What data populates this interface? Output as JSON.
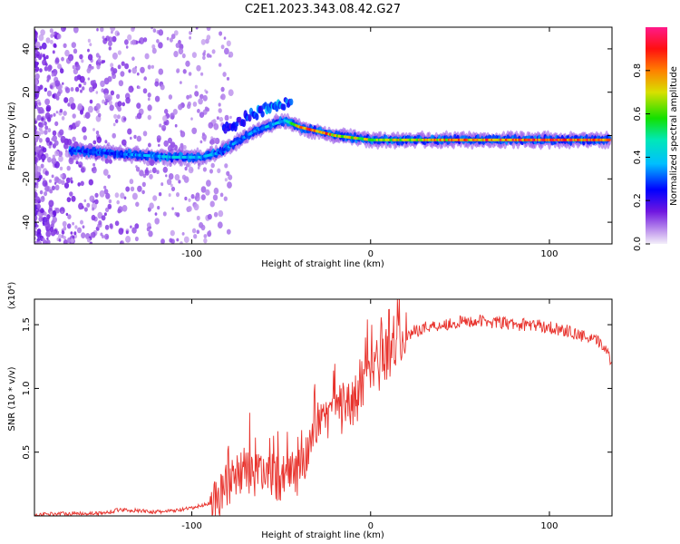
{
  "title": "C2E1.2023.343.08.42.G27",
  "chart_data": [
    {
      "type": "heatmap",
      "xlabel": "Height of straight line (km)",
      "ylabel": "Frequency (Hz)",
      "xlim": [
        -188,
        135
      ],
      "ylim": [
        -50,
        50
      ],
      "xticks": [
        -100,
        0,
        100
      ],
      "yticks": [
        -40,
        -20,
        0,
        20,
        40
      ],
      "colorbar": {
        "label": "Normalized spectral amplitude",
        "range": [
          0,
          1
        ],
        "ticks": [
          "0.0",
          "0.2",
          "0.4",
          "0.6",
          "0.8"
        ]
      },
      "ridge": {
        "x": [
          -165,
          -150,
          -130,
          -110,
          -95,
          -85,
          -75,
          -65,
          -55,
          -48,
          -40,
          -30,
          -20,
          -10,
          0,
          20,
          40,
          60,
          80,
          100,
          120,
          135
        ],
        "freq": [
          -7,
          -8,
          -9,
          -10,
          -10,
          -8,
          -3,
          2,
          5,
          7,
          4,
          2,
          0,
          -1,
          -2,
          -2,
          -2,
          -2,
          -2,
          -2,
          -2,
          -2
        ],
        "amplitude": [
          0.3,
          0.3,
          0.35,
          0.4,
          0.4,
          0.35,
          0.35,
          0.35,
          0.4,
          0.4,
          0.8,
          0.9,
          0.8,
          0.7,
          0.7,
          0.75,
          0.8,
          0.85,
          0.9,
          0.9,
          0.9,
          0.9
        ]
      },
      "branch": {
        "x": [
          -80,
          -70,
          -60,
          -50,
          -45
        ],
        "freq": [
          4,
          8,
          12,
          14,
          15
        ],
        "amplitude": [
          0.2,
          0.25,
          0.3,
          0.3,
          0.25
        ]
      }
    },
    {
      "type": "line",
      "xlabel": "Height of straight line (km)",
      "ylabel": "SNR (10 * v/v)",
      "y_multiplier": "(x10⁴)",
      "xlim": [
        -188,
        135
      ],
      "ylim": [
        0,
        1.7
      ],
      "xticks": [
        -100,
        0,
        100
      ],
      "yticks": [
        0.5,
        1.0,
        1.5
      ],
      "color": "#e8332d",
      "series": [
        {
          "x": [
            -188,
            -170,
            -150,
            -140,
            -130,
            -120,
            -110,
            -100,
            -95,
            -90,
            -85,
            -80,
            -75,
            -70,
            -65,
            -60,
            -55,
            -50,
            -45,
            -40,
            -35,
            -30,
            -25,
            -20,
            -15,
            -10,
            -5,
            0,
            5,
            10,
            20,
            30,
            40,
            50,
            60,
            70,
            80,
            90,
            100,
            110,
            120,
            130,
            135
          ],
          "values": [
            0.01,
            0.02,
            0.02,
            0.05,
            0.04,
            0.03,
            0.04,
            0.06,
            0.08,
            0.1,
            0.15,
            0.25,
            0.3,
            0.35,
            0.3,
            0.35,
            0.32,
            0.25,
            0.2,
            0.35,
            0.5,
            0.65,
            0.75,
            0.8,
            0.85,
            0.9,
            1.0,
            1.1,
            1.2,
            1.3,
            1.42,
            1.48,
            1.5,
            1.52,
            1.53,
            1.52,
            1.5,
            1.5,
            1.48,
            1.45,
            1.4,
            1.35,
            1.2
          ]
        }
      ]
    }
  ]
}
